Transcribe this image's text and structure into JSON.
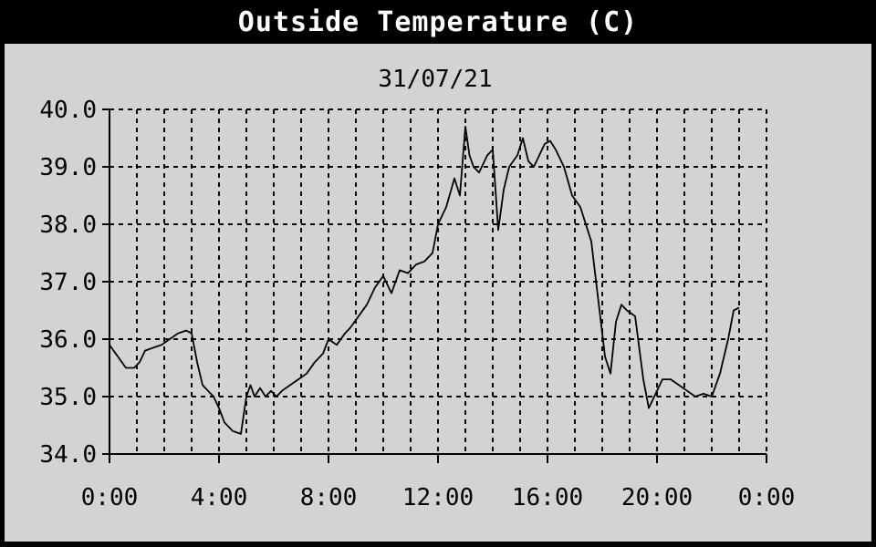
{
  "chart_data": {
    "type": "line",
    "title": "Outside Temperature (C)",
    "subtitle": "31/07/21",
    "xlabel": "",
    "ylabel": "",
    "x_ticks": [
      "0:00",
      "4:00",
      "8:00",
      "12:00",
      "16:00",
      "20:00",
      "0:00"
    ],
    "x_tick_hours": [
      0,
      4,
      8,
      12,
      16,
      20,
      24
    ],
    "y_ticks": [
      "34.0",
      "35.0",
      "36.0",
      "37.0",
      "38.0",
      "39.0",
      "40.0"
    ],
    "xlim": [
      0,
      24
    ],
    "ylim": [
      34,
      40
    ],
    "grid": true,
    "colors": {
      "line": "#000000",
      "background": "#d3d3d3",
      "title_bar": "#000000",
      "title_text": "#ffffff"
    },
    "series": [
      {
        "x": [
          0,
          0.3,
          0.6,
          0.9,
          1.1,
          1.3,
          1.6,
          1.9,
          2.2,
          2.5,
          2.8,
          3.0,
          3.2,
          3.4,
          3.6,
          3.8,
          4.0,
          4.2,
          4.5,
          4.8,
          5.0,
          5.15,
          5.3,
          5.5,
          5.7,
          5.9,
          6.1,
          6.3,
          6.6,
          6.9,
          7.2,
          7.5,
          7.8,
          8.0,
          8.3,
          8.6,
          8.8,
          9.1,
          9.4,
          9.7,
          10.0,
          10.3,
          10.6,
          10.9,
          11.2,
          11.5,
          11.8,
          12.0,
          12.3,
          12.6,
          12.8,
          13.0,
          13.15,
          13.3,
          13.5,
          13.8,
          14.0,
          14.2,
          14.4,
          14.6,
          14.9,
          15.1,
          15.3,
          15.5,
          15.7,
          15.9,
          16.1,
          16.3,
          16.6,
          16.9,
          17.2,
          17.4,
          17.6,
          17.9,
          18.1,
          18.3,
          18.5,
          18.7,
          18.9,
          19.2,
          19.5,
          19.7,
          20.0,
          20.2,
          20.5,
          20.8,
          21.1,
          21.4,
          21.7,
          22.0,
          22.3,
          22.6,
          22.8,
          23.0
        ],
        "y": [
          35.9,
          35.7,
          35.5,
          35.5,
          35.6,
          35.8,
          35.85,
          35.9,
          36.0,
          36.1,
          36.15,
          36.1,
          35.6,
          35.2,
          35.1,
          35.0,
          34.8,
          34.55,
          34.4,
          34.35,
          35.0,
          35.2,
          35.0,
          35.15,
          35.0,
          35.1,
          35.0,
          35.1,
          35.2,
          35.3,
          35.4,
          35.6,
          35.75,
          36.0,
          35.9,
          36.1,
          36.2,
          36.4,
          36.6,
          36.9,
          37.1,
          36.8,
          37.2,
          37.15,
          37.3,
          37.35,
          37.5,
          38.0,
          38.3,
          38.8,
          38.5,
          39.7,
          39.2,
          39.0,
          38.9,
          39.2,
          39.3,
          37.9,
          38.6,
          39.0,
          39.2,
          39.5,
          39.1,
          39.0,
          39.2,
          39.4,
          39.45,
          39.3,
          39.0,
          38.5,
          38.3,
          38.0,
          37.7,
          36.5,
          35.7,
          35.4,
          36.3,
          36.6,
          36.5,
          36.4,
          35.3,
          34.8,
          35.1,
          35.3,
          35.3,
          35.2,
          35.1,
          35.0,
          35.05,
          35.0,
          35.4,
          36.0,
          36.5,
          36.55
        ]
      }
    ]
  }
}
